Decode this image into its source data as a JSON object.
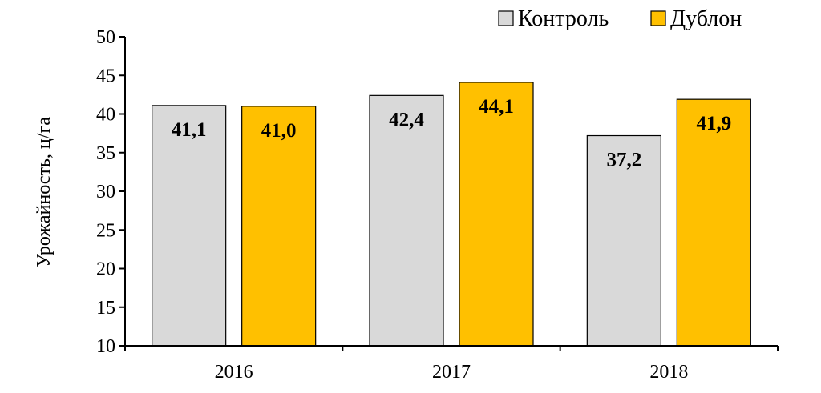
{
  "chart_data": {
    "type": "bar",
    "title": "",
    "xlabel": "",
    "ylabel": "Урожайность, ц/га",
    "ylim": [
      10,
      50
    ],
    "yticks": [
      10,
      15,
      20,
      25,
      30,
      35,
      40,
      45,
      50
    ],
    "categories": [
      "2016",
      "2017",
      "2018"
    ],
    "series": [
      {
        "name": "Контроль",
        "color": "#d9d9d9",
        "values": [
          41.1,
          42.4,
          37.2
        ],
        "labels": [
          "41,1",
          "42,4",
          "37,2"
        ]
      },
      {
        "name": "Дублон",
        "color": "#ffc000",
        "values": [
          41.0,
          44.1,
          41.9
        ],
        "labels": [
          "41,0",
          "44,1",
          "41,9"
        ]
      }
    ],
    "legend_position": "top-right",
    "grid": false
  }
}
